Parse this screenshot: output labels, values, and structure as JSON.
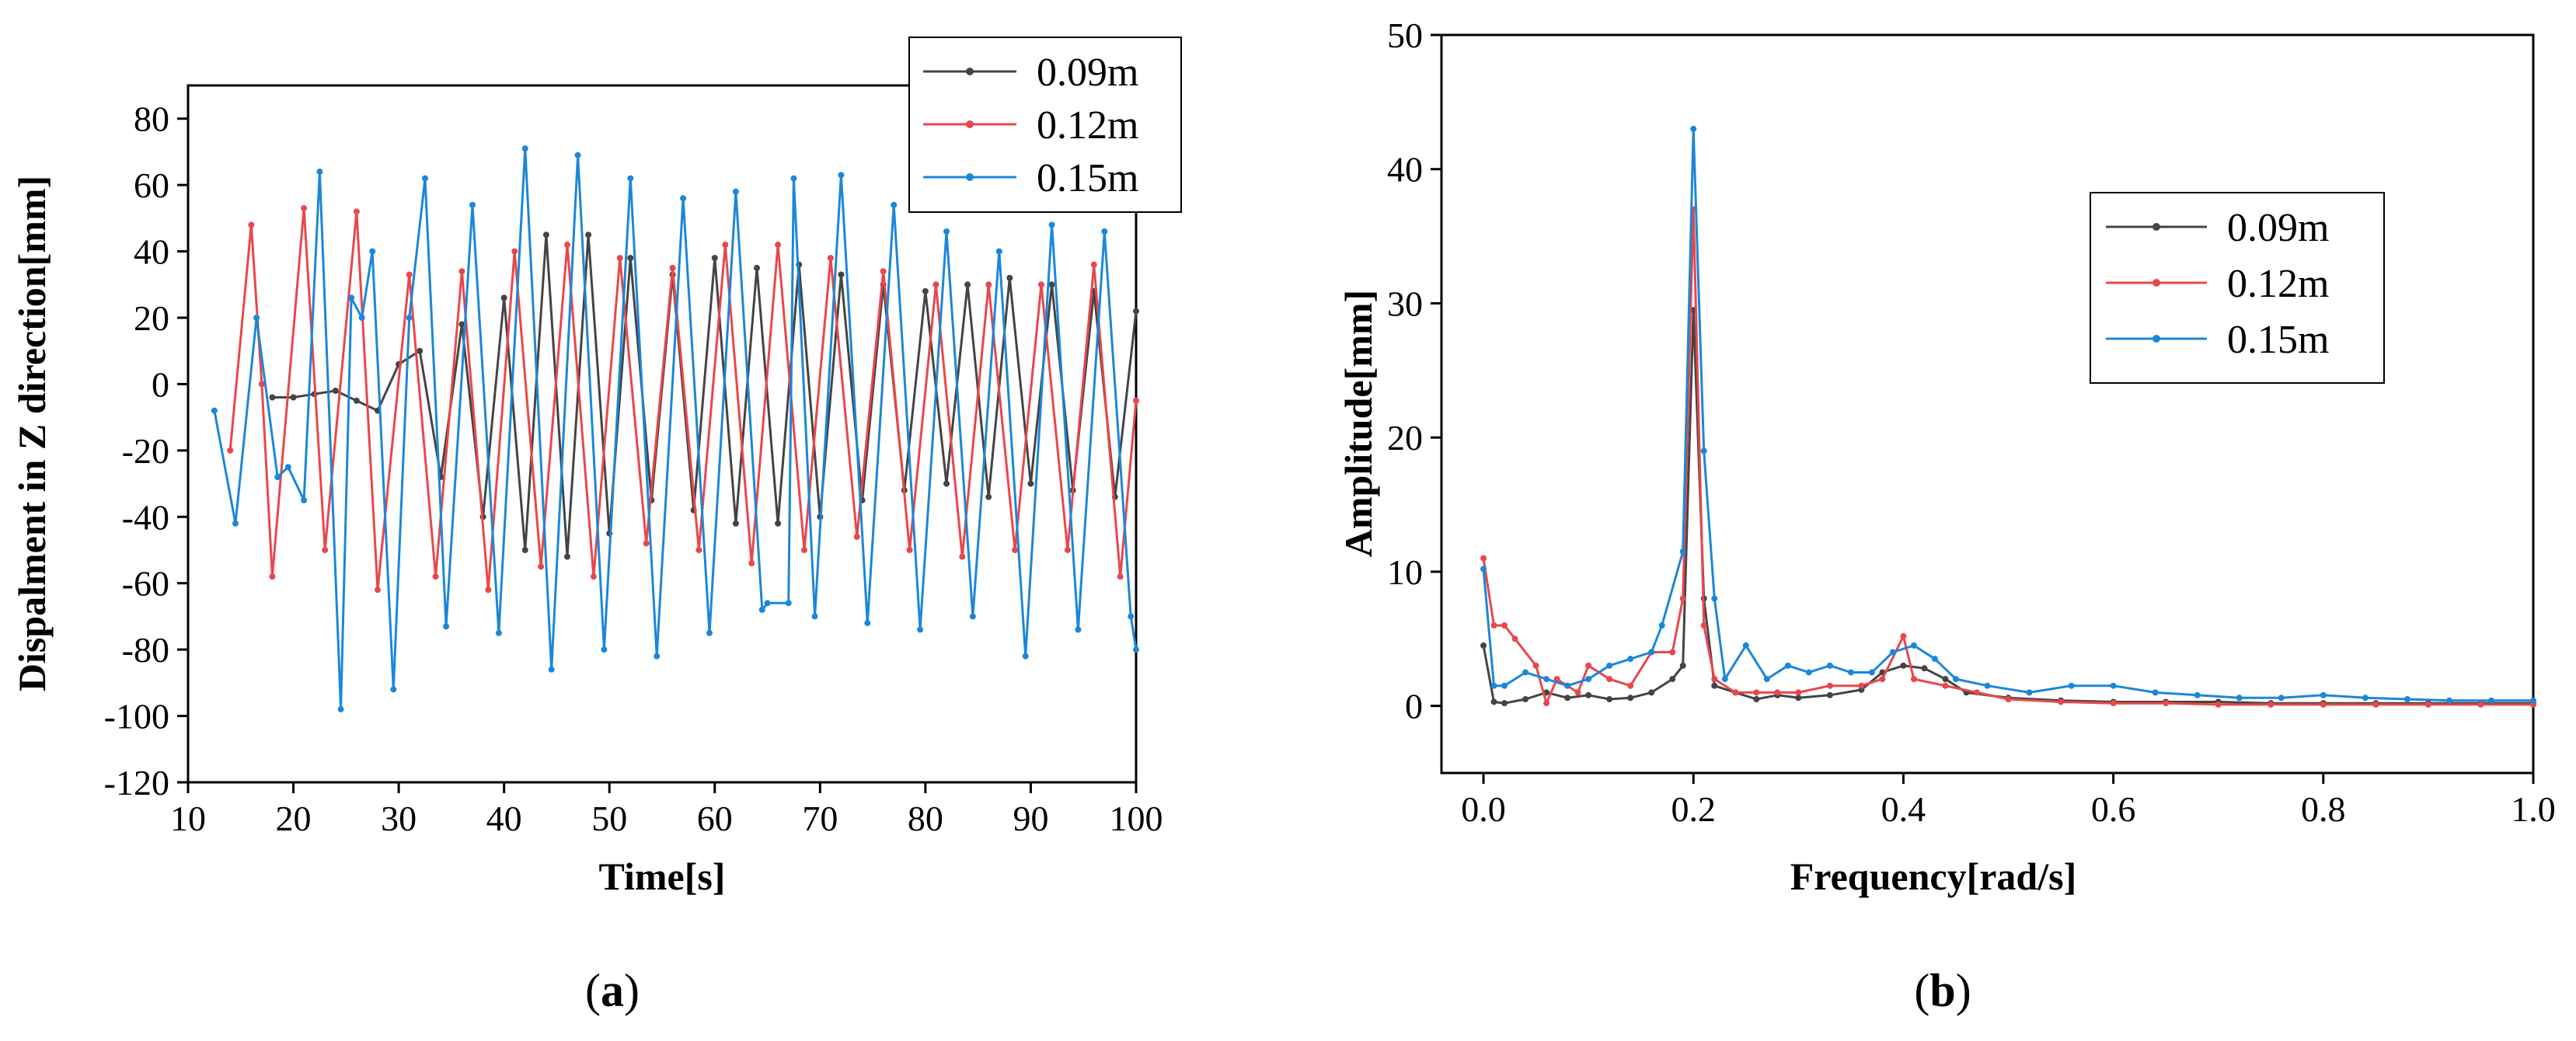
{
  "figure": {
    "panel_a_label": [
      "(",
      "a",
      ")"
    ],
    "panel_b_label": [
      "(",
      "b",
      ")"
    ]
  },
  "chart_data": [
    {
      "type": "line",
      "panel": "a",
      "xlabel": "Time[s]",
      "ylabel": "Dispalment in Z direction[mm]",
      "xlim": [
        10,
        100
      ],
      "ylim": [
        -120,
        90
      ],
      "xticks": [
        10,
        20,
        30,
        40,
        50,
        60,
        70,
        80,
        90,
        100
      ],
      "yticks": [
        -120,
        -100,
        -80,
        -60,
        -40,
        -20,
        0,
        20,
        40,
        60,
        80
      ],
      "legend_position": "top-right",
      "series": [
        {
          "name": "0.09m",
          "color": "#444444",
          "x": [
            18,
            20,
            22,
            24,
            26,
            28,
            30,
            32,
            34,
            36,
            38,
            40,
            42,
            44,
            46,
            48,
            50,
            52,
            54,
            56,
            58,
            60,
            62,
            64,
            66,
            68,
            70,
            72,
            74,
            76,
            78,
            80,
            82,
            84,
            86,
            88,
            90,
            92,
            94,
            96,
            98,
            100
          ],
          "values": [
            -4,
            -4,
            -3,
            -2,
            -5,
            -8,
            6,
            10,
            -28,
            18,
            -40,
            26,
            -50,
            45,
            -52,
            45,
            -45,
            38,
            -35,
            33,
            -38,
            38,
            -42,
            35,
            -42,
            36,
            -40,
            33,
            -35,
            30,
            -32,
            28,
            -30,
            30,
            -34,
            32,
            -30,
            30,
            -32,
            28,
            -34,
            22
          ]
        },
        {
          "name": "0.12m",
          "color": "#e8474c",
          "x": [
            14,
            16,
            17,
            18,
            21,
            23,
            26,
            28,
            31,
            33.5,
            36,
            38.5,
            41,
            43.5,
            46,
            48.5,
            51,
            53.5,
            56,
            58.5,
            61,
            63.5,
            66,
            68.5,
            71,
            73.5,
            76,
            78.5,
            81,
            83.5,
            86,
            88.5,
            91,
            93.5,
            96,
            98.5,
            100
          ],
          "values": [
            -20,
            48,
            0,
            -58,
            53,
            -50,
            52,
            -62,
            33,
            -58,
            34,
            -62,
            40,
            -55,
            42,
            -58,
            38,
            -48,
            35,
            -50,
            42,
            -54,
            42,
            -50,
            38,
            -46,
            34,
            -50,
            30,
            -52,
            30,
            -50,
            30,
            -50,
            36,
            -58,
            -5
          ]
        },
        {
          "name": "0.15m",
          "color": "#1b87d9",
          "x": [
            12.5,
            14.5,
            16.5,
            18.5,
            19.5,
            21,
            22.5,
            24.5,
            25.5,
            26.5,
            27.5,
            29.5,
            31,
            32.5,
            34.5,
            37,
            39.5,
            42,
            44.5,
            47,
            49.5,
            52,
            54.5,
            57,
            59.5,
            62,
            64.5,
            65,
            67,
            67.5,
            69.5,
            72,
            74.5,
            77,
            79.5,
            82,
            84.5,
            87,
            89.5,
            92,
            94.5,
            97,
            99.5,
            100
          ],
          "values": [
            -8,
            -42,
            20,
            -28,
            -25,
            -35,
            64,
            -98,
            26,
            20,
            40,
            -92,
            20,
            62,
            -73,
            54,
            -75,
            71,
            -86,
            69,
            -80,
            62,
            -82,
            56,
            -75,
            58,
            -68,
            -66,
            -66,
            62,
            -70,
            63,
            -72,
            54,
            -74,
            46,
            -70,
            40,
            -82,
            48,
            -74,
            46,
            -70,
            -80
          ]
        }
      ]
    },
    {
      "type": "line",
      "panel": "b",
      "xlabel": "Frequency[rad/s]",
      "ylabel": "Amplitude[mm]",
      "xlim": [
        -0.04,
        1.0
      ],
      "ylim": [
        -5,
        50
      ],
      "xticks": [
        0.0,
        0.2,
        0.4,
        0.6,
        0.8,
        1.0
      ],
      "yticks": [
        0,
        10,
        20,
        30,
        40,
        50
      ],
      "legend_position": "top-right",
      "series": [
        {
          "name": "0.09m",
          "color": "#444444",
          "x": [
            0,
            0.01,
            0.02,
            0.04,
            0.06,
            0.08,
            0.1,
            0.12,
            0.14,
            0.16,
            0.18,
            0.19,
            0.2,
            0.21,
            0.22,
            0.24,
            0.26,
            0.28,
            0.3,
            0.33,
            0.36,
            0.38,
            0.4,
            0.42,
            0.44,
            0.46,
            0.5,
            0.55,
            0.6,
            0.65,
            0.7,
            0.75,
            0.8,
            0.85,
            0.9,
            0.95,
            1.0
          ],
          "values": [
            4.5,
            0.3,
            0.2,
            0.5,
            1,
            0.6,
            0.8,
            0.5,
            0.6,
            1,
            2,
            3,
            29.5,
            8,
            1.5,
            1,
            0.5,
            0.8,
            0.6,
            0.8,
            1.2,
            2.5,
            3,
            2.8,
            2,
            1,
            0.6,
            0.4,
            0.3,
            0.3,
            0.3,
            0.2,
            0.2,
            0.2,
            0.2,
            0.2,
            0.2
          ]
        },
        {
          "name": "0.12m",
          "color": "#e8474c",
          "x": [
            0,
            0.01,
            0.02,
            0.03,
            0.05,
            0.06,
            0.07,
            0.09,
            0.1,
            0.12,
            0.14,
            0.16,
            0.18,
            0.19,
            0.2,
            0.21,
            0.22,
            0.24,
            0.26,
            0.28,
            0.3,
            0.33,
            0.36,
            0.38,
            0.4,
            0.41,
            0.44,
            0.47,
            0.5,
            0.55,
            0.6,
            0.65,
            0.7,
            0.75,
            0.8,
            0.85,
            0.9,
            0.95,
            1.0
          ],
          "values": [
            11,
            6,
            6,
            5,
            3,
            0.2,
            2,
            1,
            3,
            2,
            1.5,
            4,
            4,
            8,
            37,
            6,
            2,
            1,
            1,
            1,
            1,
            1.5,
            1.5,
            2,
            5.2,
            2,
            1.5,
            1,
            0.5,
            0.3,
            0.2,
            0.2,
            0.1,
            0.1,
            0.1,
            0.1,
            0.1,
            0.1,
            0.1
          ]
        },
        {
          "name": "0.15m",
          "color": "#1b87d9",
          "x": [
            0,
            0.01,
            0.02,
            0.04,
            0.06,
            0.08,
            0.1,
            0.12,
            0.14,
            0.16,
            0.17,
            0.19,
            0.2,
            0.21,
            0.22,
            0.23,
            0.25,
            0.27,
            0.29,
            0.31,
            0.33,
            0.35,
            0.37,
            0.39,
            0.41,
            0.43,
            0.45,
            0.48,
            0.52,
            0.56,
            0.6,
            0.64,
            0.68,
            0.72,
            0.76,
            0.8,
            0.84,
            0.88,
            0.92,
            0.96,
            1.0
          ],
          "values": [
            10.2,
            1.5,
            1.5,
            2.5,
            2,
            1.5,
            2,
            3,
            3.5,
            4,
            6,
            11.5,
            43,
            19,
            8,
            2,
            4.5,
            2,
            3,
            2.5,
            3,
            2.5,
            2.5,
            4,
            4.5,
            3.5,
            2,
            1.5,
            1,
            1.5,
            1.5,
            1,
            0.8,
            0.6,
            0.6,
            0.8,
            0.6,
            0.5,
            0.4,
            0.4,
            0.4
          ]
        }
      ]
    }
  ]
}
